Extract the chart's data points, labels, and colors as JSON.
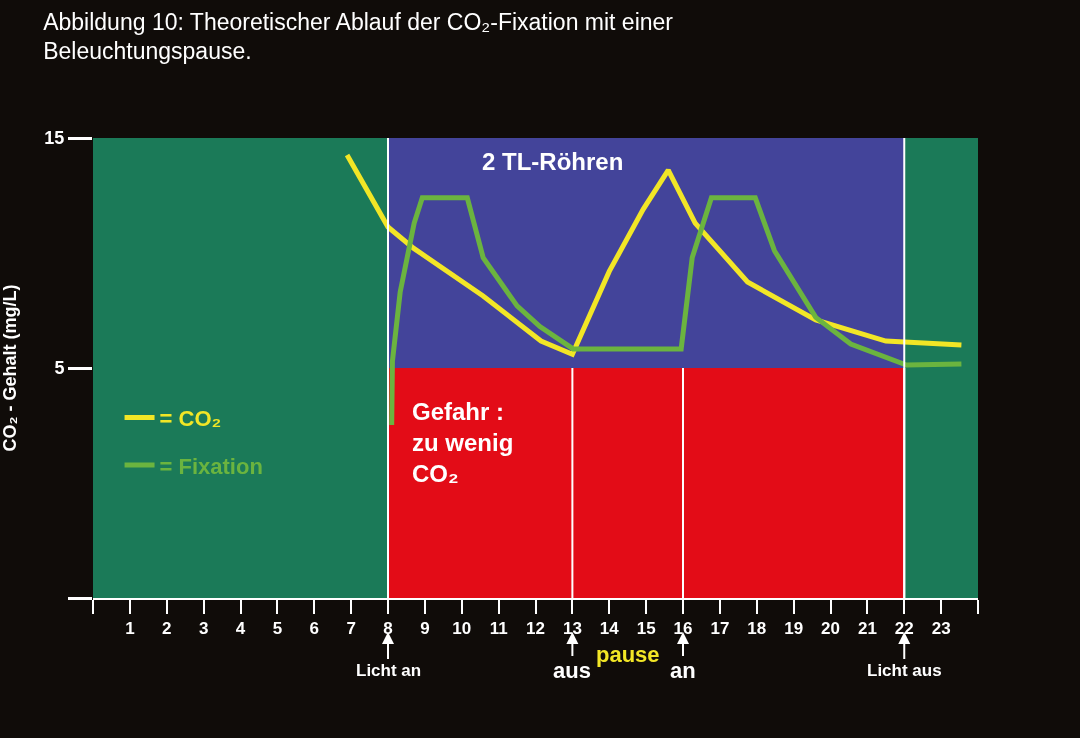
{
  "chart_data": {
    "type": "line",
    "title": "Abbildung 10: Theoretischer Ablauf der CO₂-Fixation mit einer\nBeleuchtungspause.",
    "ylabel": "CO₂ - Gehalt (mg/L)",
    "xlim": [
      0,
      24
    ],
    "xticks": [
      {
        "value": 0,
        "label": null
      },
      1,
      2,
      3,
      4,
      5,
      6,
      7,
      8,
      9,
      10,
      11,
      12,
      13,
      14,
      15,
      16,
      17,
      18,
      19,
      20,
      21,
      22,
      23,
      {
        "value": 24,
        "label": null
      }
    ],
    "ylim": [
      -5,
      15
    ],
    "yticks": [
      {
        "value": -5,
        "label": null
      },
      5,
      15
    ],
    "grid": false,
    "legend": "left",
    "marker": "none",
    "line_style": "solid",
    "series": [
      {
        "name": "= CO₂",
        "color": "#f2e626",
        "x": [
          6.89,
          8.0,
          8.7,
          10.58,
          12.15,
          13.0,
          14.0,
          14.92,
          15.6,
          16.33,
          17.75,
          19.6,
          21.5,
          23.55
        ],
        "values": [
          14.26,
          11.13,
          10.2,
          8.13,
          6.17,
          5.6,
          9.2,
          11.9,
          13.6,
          11.3,
          8.74,
          7.09,
          6.17,
          6.0
        ]
      },
      {
        "name": "= Fixation",
        "color": "#6bb43f",
        "x": [
          8.1,
          8.12,
          8.33,
          8.71,
          8.93,
          10.15,
          10.58,
          11.5,
          12.12,
          13.02,
          15.95,
          16.25,
          16.77,
          17.96,
          18.48,
          19.6,
          20.55,
          22.06,
          23.55
        ],
        "values": [
          2.52,
          5.3,
          8.3,
          11.3,
          12.4,
          12.4,
          9.8,
          7.7,
          6.8,
          5.83,
          5.83,
          9.8,
          12.4,
          12.4,
          10.1,
          7.2,
          6.04,
          5.13,
          5.17
        ]
      }
    ],
    "bands": [
      {
        "axis": "y",
        "from": 5,
        "to": 15,
        "color": "#43449a",
        "label": "2 TL-Röhren"
      },
      {
        "axis": "y",
        "from": -5,
        "to": 5,
        "color": "#e30c17",
        "label": "Gefahr :\nzu wenig\nCO₂"
      },
      {
        "axis": "x",
        "from": 0,
        "to": 8,
        "color": "#1b7a58"
      },
      {
        "axis": "x",
        "from": 22,
        "to": 24,
        "color": "#1b7a58"
      }
    ],
    "ref_lines": [
      {
        "axis": "x",
        "value": 8,
        "label": "Licht an",
        "color": "#ffffff"
      },
      {
        "axis": "x",
        "value": 13,
        "label": "aus",
        "color": "#ffffff"
      },
      {
        "axis": "x",
        "value": 16,
        "label": "an",
        "color": "#ffffff"
      },
      {
        "axis": "x",
        "value": 22,
        "label": "Licht aus",
        "color": "#ffffff"
      }
    ],
    "annotations": [
      "pause"
    ]
  }
}
